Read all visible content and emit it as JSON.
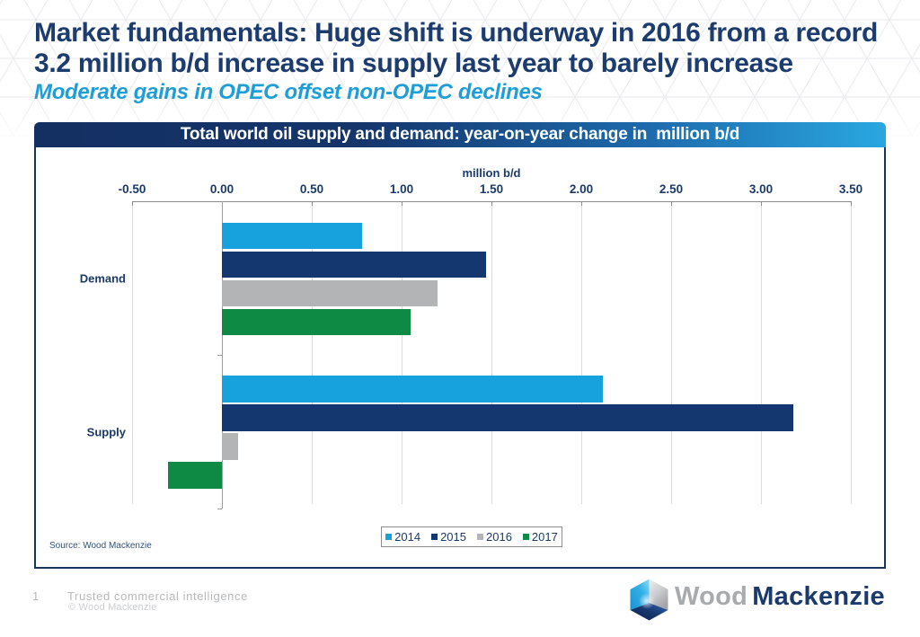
{
  "slide": {
    "title_line1": "Market fundamentals: Huge shift is underway in 2016 from a record",
    "title_line2": "3.2 million b/d increase in supply last year to barely increase",
    "subtitle": "Moderate gains in OPEC offset non-OPEC declines"
  },
  "chart_header": {
    "title": "Total world oil supply and demand: year-on-year change in  million b/d"
  },
  "chart_data": {
    "type": "bar",
    "orientation": "horizontal",
    "title": "Total world oil supply and demand: year-on-year change in  million b/d",
    "xlabel": "million b/d",
    "categories": [
      "Demand",
      "Supply"
    ],
    "series": [
      {
        "name": "2014",
        "color": "#17a2de",
        "values": [
          0.78,
          2.12
        ]
      },
      {
        "name": "2015",
        "color": "#14376f",
        "values": [
          1.47,
          3.18
        ]
      },
      {
        "name": "2016",
        "color": "#b3b4b6",
        "values": [
          1.2,
          0.09
        ]
      },
      {
        "name": "2017",
        "color": "#0f8a44",
        "values": [
          1.05,
          -0.3
        ]
      }
    ],
    "xlim": [
      -0.5,
      3.5
    ],
    "xtick_values": [
      -0.5,
      0,
      0.5,
      1,
      1.5,
      2,
      2.5,
      3,
      3.5
    ],
    "xtick_labels": [
      "-0.50",
      "0.00",
      "0.50",
      "1.00",
      "1.50",
      "2.00",
      "2.50",
      "3.00",
      "3.50"
    ],
    "gridlines": true,
    "legend_position": "bottom"
  },
  "source_note": "Source: Wood Mackenzie",
  "footer": {
    "page_number": "1",
    "tagline": "Trusted commercial intelligence",
    "copyright": "© Wood Mackenzie"
  },
  "logo": {
    "word1": "Wood",
    "word2": "Mackenzie"
  },
  "colors": {
    "title_navy": "#1b3a6b",
    "subtitle_cyan": "#2196d2",
    "header_gradient_start": "#142f62",
    "header_gradient_end": "#2aa7e0",
    "panel_border": "#17365d",
    "gridline": "#d9d9d9",
    "axis": "#8c8c8c",
    "footer_gray": "#aeaeb0",
    "logo_wood_gray": "#a7a9ac"
  }
}
